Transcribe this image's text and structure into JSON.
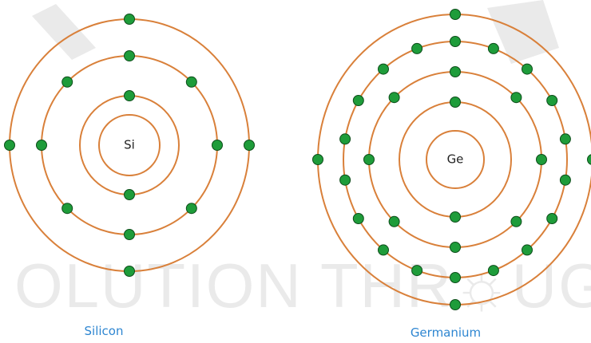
{
  "atoms": [
    {
      "symbol": "Si",
      "name": "Silicon",
      "shell_electrons": [
        2,
        8,
        4
      ]
    },
    {
      "symbol": "Ge",
      "name": "Germanium",
      "shell_electrons": [
        2,
        8,
        18,
        4
      ]
    }
  ],
  "watermark": {
    "text": "OLUTION THR☼UGH TECHNOL"
  },
  "colors": {
    "orbit": "#d9803a",
    "electron": "#1e9c3a",
    "caption": "#2e86d1"
  }
}
